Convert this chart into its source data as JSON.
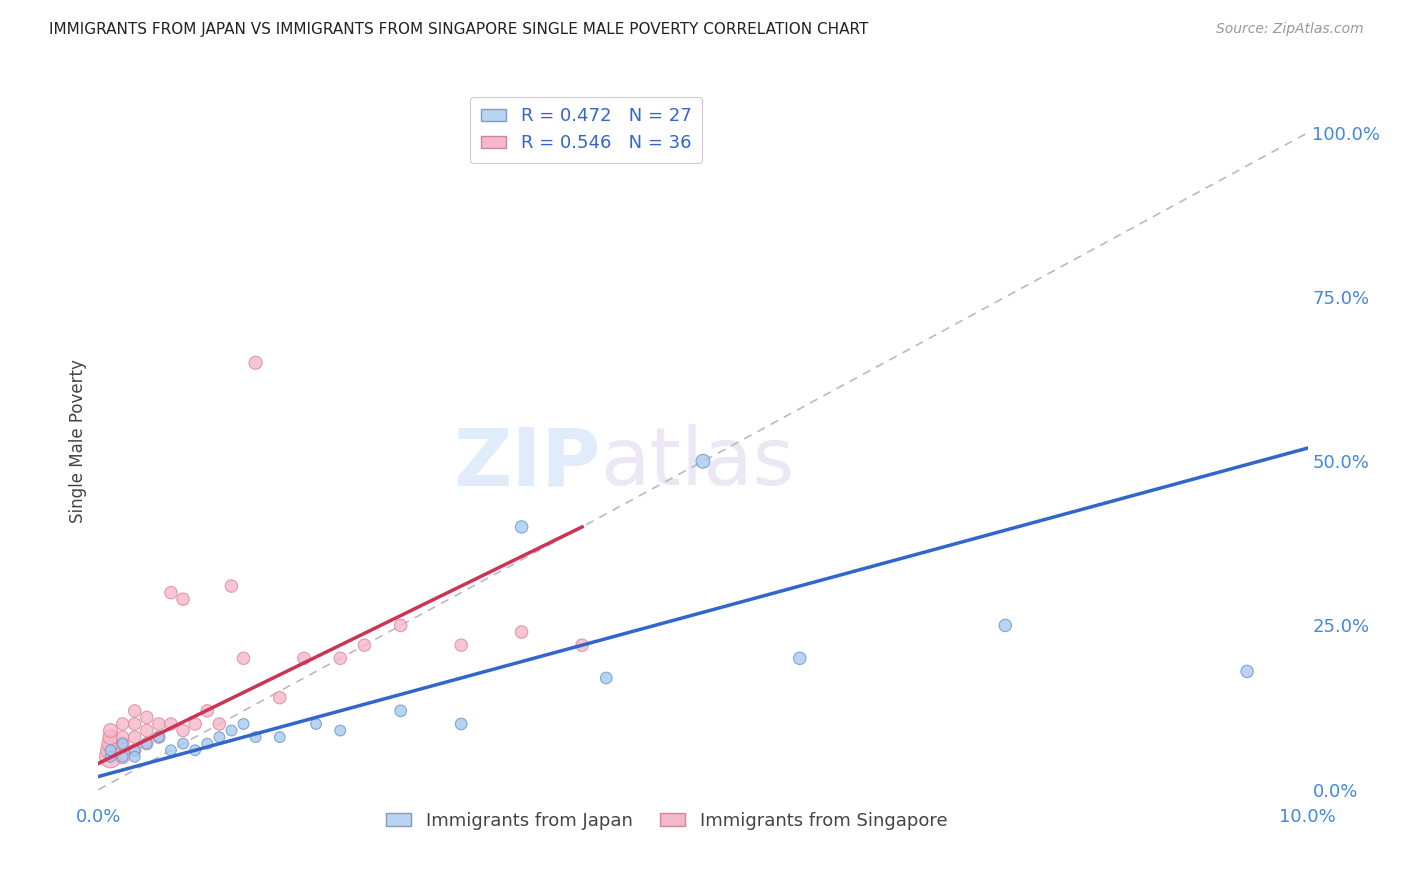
{
  "title": "IMMIGRANTS FROM JAPAN VS IMMIGRANTS FROM SINGAPORE SINGLE MALE POVERTY CORRELATION CHART",
  "source": "Source: ZipAtlas.com",
  "ylabel": "Single Male Poverty",
  "yticks": [
    "0.0%",
    "25.0%",
    "50.0%",
    "75.0%",
    "100.0%"
  ],
  "ytick_vals": [
    0.0,
    0.25,
    0.5,
    0.75,
    1.0
  ],
  "xlim": [
    0.0,
    0.1
  ],
  "ylim": [
    -0.02,
    1.08
  ],
  "japan_color": "#a8c8f0",
  "japan_edge": "#6699cc",
  "singapore_color": "#f5b8c8",
  "singapore_edge": "#dd8899",
  "japan_R": 0.472,
  "japan_N": 27,
  "singapore_R": 0.546,
  "singapore_N": 36,
  "japan_line_color": "#3366cc",
  "singapore_line_color": "#cc3355",
  "diagonal_color": "#bbbbbb",
  "bg_color": "#ffffff",
  "grid_color": "#e0e0e0",
  "japan_x": [
    0.001,
    0.001,
    0.002,
    0.002,
    0.003,
    0.003,
    0.004,
    0.005,
    0.006,
    0.007,
    0.008,
    0.009,
    0.01,
    0.011,
    0.012,
    0.013,
    0.015,
    0.018,
    0.02,
    0.025,
    0.03,
    0.035,
    0.042,
    0.05,
    0.058,
    0.075,
    0.095
  ],
  "japan_y": [
    0.05,
    0.06,
    0.07,
    0.05,
    0.06,
    0.05,
    0.07,
    0.08,
    0.06,
    0.07,
    0.06,
    0.07,
    0.08,
    0.09,
    0.1,
    0.08,
    0.08,
    0.1,
    0.09,
    0.12,
    0.1,
    0.4,
    0.17,
    0.5,
    0.2,
    0.25,
    0.18
  ],
  "singapore_x": [
    0.001,
    0.001,
    0.001,
    0.001,
    0.001,
    0.002,
    0.002,
    0.002,
    0.002,
    0.003,
    0.003,
    0.003,
    0.003,
    0.004,
    0.004,
    0.004,
    0.005,
    0.005,
    0.006,
    0.006,
    0.007,
    0.007,
    0.008,
    0.009,
    0.01,
    0.011,
    0.012,
    0.013,
    0.015,
    0.017,
    0.02,
    0.022,
    0.025,
    0.03,
    0.035,
    0.04
  ],
  "singapore_y": [
    0.05,
    0.06,
    0.07,
    0.08,
    0.09,
    0.05,
    0.07,
    0.08,
    0.1,
    0.06,
    0.08,
    0.1,
    0.12,
    0.07,
    0.09,
    0.11,
    0.08,
    0.1,
    0.1,
    0.3,
    0.09,
    0.29,
    0.1,
    0.12,
    0.1,
    0.31,
    0.2,
    0.65,
    0.14,
    0.2,
    0.2,
    0.22,
    0.25,
    0.22,
    0.24,
    0.22
  ],
  "japan_sizes": [
    60,
    60,
    60,
    60,
    60,
    60,
    60,
    60,
    60,
    60,
    60,
    60,
    60,
    60,
    60,
    60,
    60,
    60,
    60,
    70,
    70,
    80,
    70,
    100,
    80,
    80,
    80
  ],
  "singapore_sizes": [
    250,
    200,
    150,
    120,
    100,
    100,
    90,
    80,
    80,
    80,
    80,
    80,
    80,
    80,
    80,
    80,
    80,
    80,
    80,
    80,
    80,
    80,
    80,
    80,
    80,
    80,
    80,
    90,
    80,
    80,
    80,
    80,
    80,
    80,
    80,
    80
  ]
}
